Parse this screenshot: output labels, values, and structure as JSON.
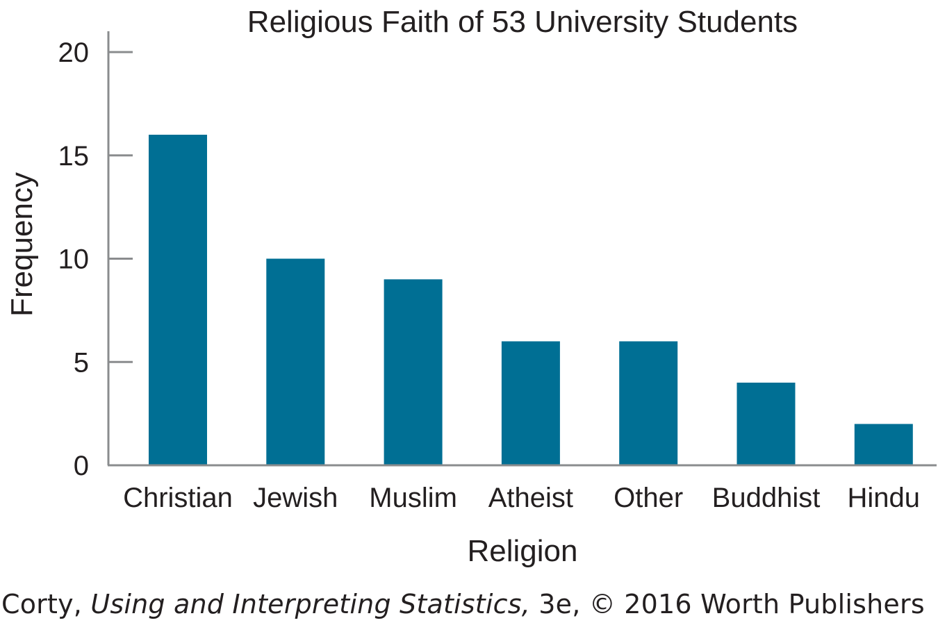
{
  "chart_data": {
    "type": "bar",
    "title": "Religious Faith of 53 University Students",
    "xlabel": "Religion",
    "ylabel": "Frequency",
    "categories": [
      "Christian",
      "Jewish",
      "Muslim",
      "Atheist",
      "Other",
      "Buddhist",
      "Hindu"
    ],
    "values": [
      16,
      10,
      9,
      6,
      6,
      4,
      2
    ],
    "ylim": [
      0,
      20
    ],
    "yticks": [
      0,
      5,
      10,
      15,
      20
    ],
    "grid": false,
    "legend": "none",
    "bar_color": "#006f94",
    "axis_color": "#8a8c8e"
  },
  "credit": {
    "author": "Corty, ",
    "book": "Using and Interpreting Statistics,",
    "rest": " 3e, © 2016 Worth Publishers"
  }
}
